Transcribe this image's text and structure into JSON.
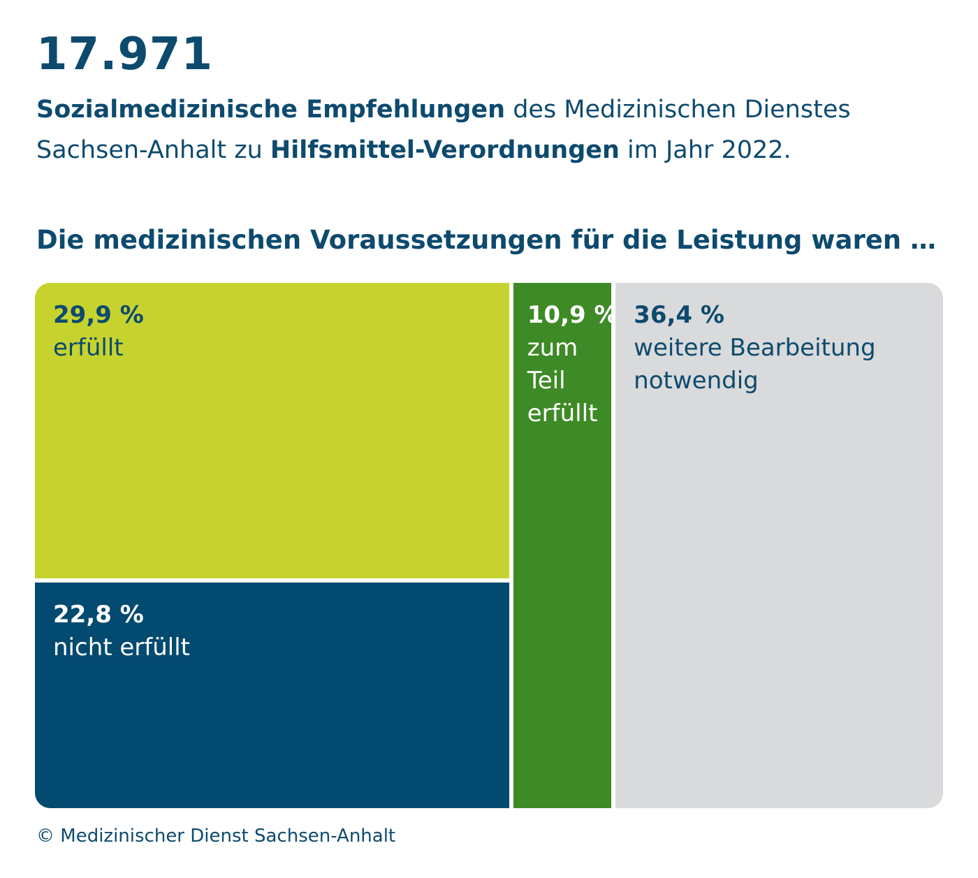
{
  "header": {
    "count": "17.971",
    "subtitle_bold_1": "Sozialmedizinische Empfehlungen",
    "subtitle_text_1": " des Medizinischen Dienstes Sachsen-Anhalt zu ",
    "subtitle_bold_2": "Hilfsmittel-Verordnungen",
    "subtitle_text_2": " im Jahr 2022."
  },
  "question": "Die medizinischen Voraussetzungen für die Leistung waren …",
  "footer": "© Medizinischer Dienst Sachsen-Anhalt",
  "chart_data": {
    "type": "treemap",
    "categories": [
      "erfüllt",
      "nicht erfüllt",
      "zum Teil erfüllt",
      "weitere Bearbeitung notwendig"
    ],
    "values": [
      29.9,
      22.8,
      10.9,
      36.4
    ],
    "unit": "%",
    "items": [
      {
        "pct_label": "29,9 %",
        "label": "erfüllt",
        "value": 29.9,
        "color": "#c6d32e",
        "text_color": "#0d4a6e"
      },
      {
        "pct_label": "22,8 %",
        "label": "nicht erfüllt",
        "value": 22.8,
        "color": "#024a70",
        "text_color": "#ffffff"
      },
      {
        "pct_label": "10,9 %",
        "label": "zum\nTeil\nerfüllt",
        "value": 10.9,
        "color": "#3e8a26",
        "text_color": "#ffffff"
      },
      {
        "pct_label": "36,4 %",
        "label": "weitere Bearbeitung\nnotwendig",
        "value": 36.4,
        "color": "#d9dadb",
        "text_color": "#0d4a6e"
      }
    ]
  }
}
